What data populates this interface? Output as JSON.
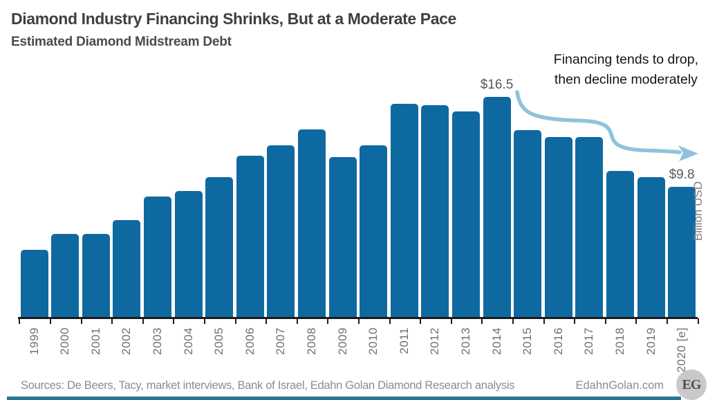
{
  "header": {
    "title": "Diamond Industry Financing Shrinks, But at a Moderate Pace",
    "subtitle": "Estimated Diamond Midstream Debt"
  },
  "annotation": {
    "line1": "Financing tends to drop,",
    "line2": "then decline moderately"
  },
  "chart_data": {
    "type": "bar",
    "categories": [
      "1999",
      "2000",
      "2001",
      "2002",
      "2003",
      "2004",
      "2005",
      "2006",
      "2007",
      "2008",
      "2009",
      "2010",
      "2011",
      "2012",
      "2013",
      "2014",
      "2015",
      "2016",
      "2017",
      "2018",
      "2019",
      "2020 [e]"
    ],
    "values": [
      5.1,
      6.3,
      6.3,
      7.3,
      9.1,
      9.5,
      10.5,
      12.1,
      12.9,
      14.1,
      12.0,
      12.9,
      16.0,
      15.9,
      15.4,
      16.5,
      14.0,
      13.5,
      13.5,
      11.0,
      10.5,
      9.8
    ],
    "series_name": "Estimated Diamond Midstream Debt",
    "title": "Diamond Industry Financing Shrinks, But at a Moderate Pace",
    "xlabel": "",
    "ylabel": "Billion USD",
    "ylim": [
      0,
      17.5
    ],
    "grid": false,
    "legend": false,
    "labeled_points": [
      {
        "index": 15,
        "label": "$16.5"
      },
      {
        "index": 21,
        "label": "$9.8"
      }
    ],
    "bar_color": "#0F69A1",
    "arrow_color": "#8FC3DC",
    "strip_color": "#2A7391"
  },
  "footer": {
    "sources": "Sources: De Beers, Tacy, market interviews, Bank of Israel, Edahn Golan Diamond Research analysis",
    "site": "EdahnGolan.com",
    "logo": "EG"
  }
}
